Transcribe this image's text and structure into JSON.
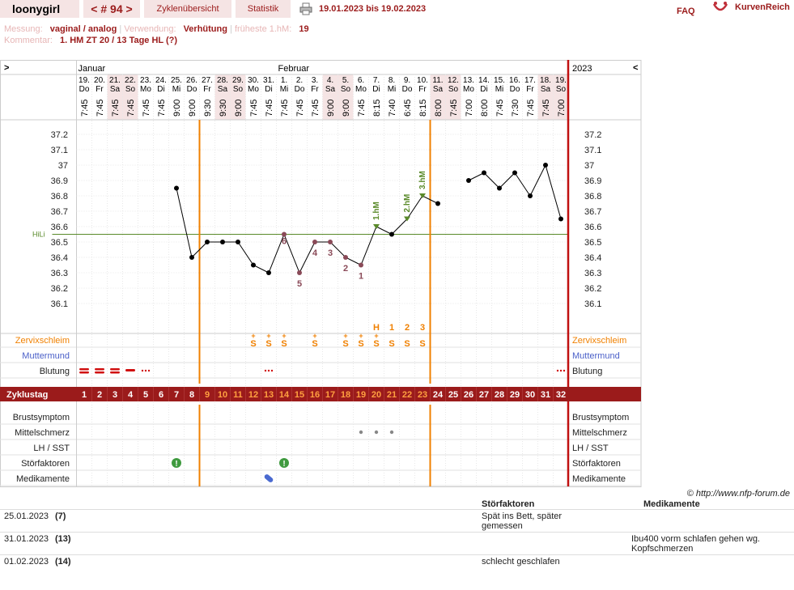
{
  "header": {
    "user": "loonygirl",
    "cycle_nav": "< # 94 >",
    "tab_overview": "Zyklenübersicht",
    "tab_stats": "Statistik",
    "date_range": "19.01.2023 bis 19.02.2023",
    "faq": "FAQ",
    "brand": "KurvenReich"
  },
  "info": {
    "messung_label": "Messung:",
    "messung_value": "vaginal / analog",
    "verwendung_label": "Verwendung:",
    "verwendung_value": "Verhütung",
    "frueheste_label": "früheste 1.hM:",
    "frueheste_value": "19",
    "kommentar_label": "Kommentar:",
    "kommentar_value": "1. HM ZT 20 / 13 Tage HL (?)"
  },
  "chart_data": {
    "type": "line",
    "year": "2023",
    "nav_prev": ">",
    "nav_next": "<",
    "months": [
      {
        "label": "Januar",
        "start_index": 0
      },
      {
        "label": "Februar",
        "start_index": 13
      }
    ],
    "dates": [
      "19.",
      "20.",
      "21.",
      "22.",
      "23.",
      "24.",
      "25.",
      "26.",
      "27.",
      "28.",
      "29.",
      "30.",
      "31.",
      "1.",
      "2.",
      "3.",
      "4.",
      "5.",
      "6.",
      "7.",
      "8.",
      "9.",
      "10.",
      "11.",
      "12.",
      "13.",
      "14.",
      "15.",
      "16.",
      "17.",
      "18.",
      "19."
    ],
    "weekdays": [
      "Do",
      "Fr",
      "Sa",
      "So",
      "Mo",
      "Di",
      "Mi",
      "Do",
      "Fr",
      "Sa",
      "So",
      "Mo",
      "Di",
      "Mi",
      "Do",
      "Fr",
      "Sa",
      "So",
      "Mo",
      "Di",
      "Mi",
      "Do",
      "Fr",
      "Sa",
      "So",
      "Mo",
      "Di",
      "Mi",
      "Do",
      "Fr",
      "Sa",
      "So"
    ],
    "weekend_indices": [
      2,
      3,
      9,
      10,
      16,
      17,
      23,
      24,
      30,
      31
    ],
    "times": [
      "7:45",
      "7:45",
      "7:45",
      "7:45",
      "7:45",
      "7:45",
      "9:00",
      "9:00",
      "9:30",
      "9:30",
      "9:00",
      "7:45",
      "7:45",
      "7:45",
      "7:45",
      "7:45",
      "9:00",
      "9:00",
      "7:45",
      "8:15",
      "7:40",
      "6:45",
      "8:15",
      "8:00",
      "7:45",
      "7:00",
      "8:00",
      "7:45",
      "7:30",
      "7:45",
      "7:45",
      "7:00"
    ],
    "y_ticks": [
      "37.2",
      "37.1",
      "37",
      "36.9",
      "36.8",
      "36.7",
      "36.6",
      "36.5",
      "36.4",
      "36.3",
      "36.2",
      "36.1"
    ],
    "ylim": [
      36.0,
      37.3
    ],
    "temps": [
      null,
      null,
      null,
      null,
      null,
      null,
      36.85,
      36.4,
      36.5,
      36.5,
      36.5,
      36.35,
      36.3,
      36.55,
      36.3,
      36.5,
      36.5,
      36.4,
      36.35,
      36.6,
      36.55,
      36.65,
      36.8,
      36.75,
      null,
      36.9,
      36.95,
      36.85,
      36.95,
      36.8,
      37.0,
      36.65
    ],
    "segments": [
      [
        6,
        23
      ],
      [
        25,
        31
      ]
    ],
    "hilo_label": "HiLi",
    "hilo_value": 36.55,
    "low_labels": [
      {
        "i": 13,
        "t": "6"
      },
      {
        "i": 14,
        "t": "5"
      },
      {
        "i": 15,
        "t": "4"
      },
      {
        "i": 16,
        "t": "3"
      },
      {
        "i": 17,
        "t": "2"
      },
      {
        "i": 18,
        "t": "1"
      }
    ],
    "hm_labels": [
      {
        "i": 19,
        "t": "1.hM"
      },
      {
        "i": 21,
        "t": "2.hM"
      },
      {
        "i": 22,
        "t": "3.hM"
      }
    ],
    "vertical_lines": [
      7.5,
      22.5
    ],
    "cervix_counts": [
      {
        "i": 19,
        "t": "H"
      },
      {
        "i": 20,
        "t": "1"
      },
      {
        "i": 21,
        "t": "2"
      },
      {
        "i": 22,
        "t": "3"
      }
    ],
    "mucus": [
      {
        "i": 11,
        "t": "S+"
      },
      {
        "i": 12,
        "t": "S+"
      },
      {
        "i": 13,
        "t": "S+"
      },
      {
        "i": 15,
        "t": "S+"
      },
      {
        "i": 17,
        "t": "S+"
      },
      {
        "i": 18,
        "t": "S+"
      },
      {
        "i": 19,
        "t": "S+"
      },
      {
        "i": 20,
        "t": "S"
      },
      {
        "i": 21,
        "t": "S"
      },
      {
        "i": 22,
        "t": "S"
      }
    ],
    "bleeding": [
      {
        "i": 0,
        "level": "heavy"
      },
      {
        "i": 1,
        "level": "heavy"
      },
      {
        "i": 2,
        "level": "heavy"
      },
      {
        "i": 3,
        "level": "medium"
      },
      {
        "i": 4,
        "level": "spotting"
      },
      {
        "i": 12,
        "level": "spotting"
      },
      {
        "i": 31,
        "level": "spotting"
      }
    ],
    "mittelschmerz": [
      18,
      19,
      20
    ],
    "stoerfaktoren": [
      6,
      13
    ],
    "medikamente": [
      12
    ],
    "row_labels": {
      "zervix": "Zervixschleim",
      "muttermund": "Muttermund",
      "blutung": "Blutung",
      "zyklustag": "Zyklustag",
      "brust": "Brustsymptom",
      "mittel": "Mittelschmerz",
      "lh": "LH / SST",
      "stoer": "Störfaktoren",
      "medi": "Medikamente"
    },
    "cycle_days": [
      "1",
      "2",
      "3",
      "4",
      "5",
      "6",
      "7",
      "8",
      "9",
      "10",
      "11",
      "12",
      "13",
      "14",
      "15",
      "16",
      "17",
      "18",
      "19",
      "20",
      "21",
      "22",
      "23",
      "24",
      "25",
      "26",
      "27",
      "28",
      "29",
      "30",
      "31",
      "32"
    ],
    "fertile_days": [
      8,
      22
    ]
  },
  "footer": {
    "copyright": "© http://www.nfp-forum.de",
    "col_stoer": "Störfaktoren",
    "col_medi": "Medikamente",
    "entries": [
      {
        "date": "25.01.2023",
        "day": "(7)",
        "stoer": "Spät ins Bett, später gemessen",
        "medi": ""
      },
      {
        "date": "31.01.2023",
        "day": "(13)",
        "stoer": "",
        "medi": "Ibu400 vorm schlafen gehen wg. Kopfschmerzen"
      },
      {
        "date": "01.02.2023",
        "day": "(14)",
        "stoer": "schlecht geschlafen",
        "medi": ""
      }
    ]
  },
  "colors": {
    "accent": "#9b1b1b",
    "orange": "#f08000",
    "green": "#5a8a2a",
    "blue": "#4a5fc8",
    "weekend": "#f5e4e4"
  }
}
